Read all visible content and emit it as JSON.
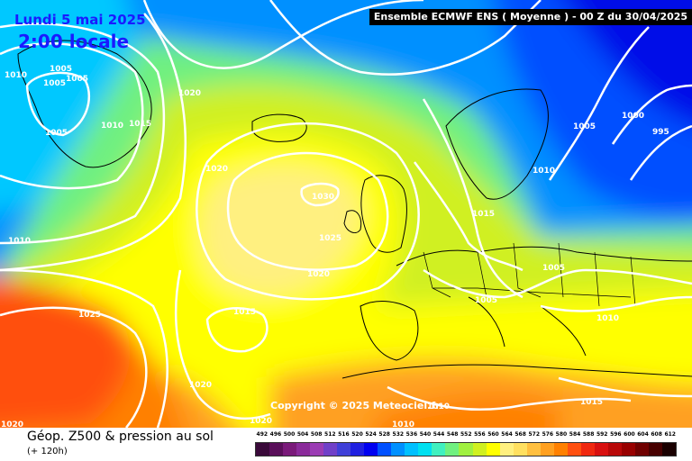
{
  "header": {
    "date": "Lundi 5 mai 2025",
    "time": "2:00 locale",
    "run_info": "Ensemble ECMWF ENS  ( Moyenne )  - 00 Z du 30/04/2025"
  },
  "map": {
    "isobars": [
      {
        "label": "1010",
        "kind": "pressure-label"
      },
      {
        "label": "1005",
        "kind": "pressure-label"
      },
      {
        "label": "1005",
        "kind": "pressure-label"
      },
      {
        "label": "1005",
        "kind": "pressure-label"
      },
      {
        "label": "1005",
        "kind": "pressure-label"
      },
      {
        "label": "1010",
        "kind": "pressure-label"
      },
      {
        "label": "1015",
        "kind": "pressure-label"
      },
      {
        "label": "1020",
        "kind": "pressure-label"
      },
      {
        "label": "1020",
        "kind": "pressure-label"
      },
      {
        "label": "1010",
        "kind": "pressure-label"
      },
      {
        "label": "1030",
        "kind": "pressure-label"
      },
      {
        "label": "1025",
        "kind": "pressure-label"
      },
      {
        "label": "1020",
        "kind": "pressure-label"
      },
      {
        "label": "1015",
        "kind": "pressure-label"
      },
      {
        "label": "1025",
        "kind": "pressure-label"
      },
      {
        "label": "1020",
        "kind": "pressure-label"
      },
      {
        "label": "1020",
        "kind": "pressure-label"
      },
      {
        "label": "1020",
        "kind": "pressure-label"
      },
      {
        "label": "1005",
        "kind": "pressure-label"
      },
      {
        "label": "1000",
        "kind": "pressure-label"
      },
      {
        "label": "995",
        "kind": "pressure-label"
      },
      {
        "label": "1010",
        "kind": "pressure-label"
      },
      {
        "label": "1015",
        "kind": "pressure-label"
      },
      {
        "label": "1005",
        "kind": "pressure-label"
      },
      {
        "label": "1005",
        "kind": "pressure-label"
      },
      {
        "label": "1010",
        "kind": "pressure-label"
      },
      {
        "label": "1010",
        "kind": "pressure-label"
      },
      {
        "label": "1010",
        "kind": "pressure-label"
      },
      {
        "label": "1015",
        "kind": "pressure-label"
      }
    ],
    "copyright": "Copyright © 2025 Meteociel.fr"
  },
  "footer": {
    "parameter": "Géop. Z500 & pression au sol",
    "lead_time": "(+ 120h)"
  },
  "legend": {
    "values": [
      "492",
      "496",
      "500",
      "504",
      "508",
      "512",
      "516",
      "520",
      "524",
      "528",
      "532",
      "536",
      "540",
      "544",
      "548",
      "552",
      "556",
      "560",
      "564",
      "568",
      "572",
      "576",
      "580",
      "584",
      "588",
      "592",
      "596",
      "600",
      "604",
      "608",
      "612"
    ],
    "colors": [
      "#3a0a3a",
      "#5a0f5a",
      "#7a1a7a",
      "#8a2a9a",
      "#9b3cb4",
      "#7040c8",
      "#4040d8",
      "#2020e0",
      "#0000f0",
      "#0050ff",
      "#0090ff",
      "#00c0ff",
      "#00e0f0",
      "#40f0c0",
      "#70f080",
      "#a0f040",
      "#d0f020",
      "#ffff00",
      "#fff080",
      "#ffe060",
      "#ffc040",
      "#ffa020",
      "#ff8000",
      "#ff5010",
      "#f02810",
      "#d81010",
      "#b80808",
      "#980000",
      "#700000",
      "#480000",
      "#1a0000"
    ]
  }
}
